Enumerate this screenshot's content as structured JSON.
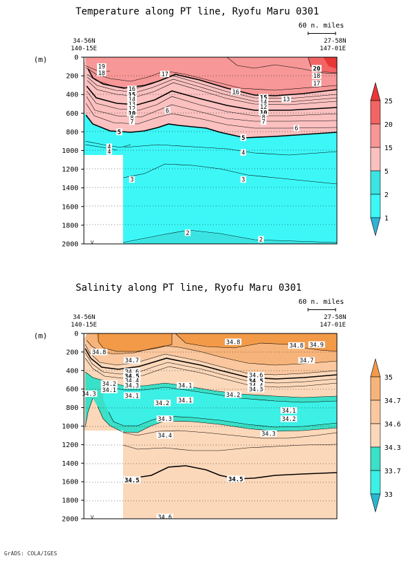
{
  "footer": "GrADS: COLA/IGES",
  "chart_data": [
    {
      "type": "contour",
      "title": "Temperature along PT line, Ryofu Maru 0301",
      "ylabel": "(m)",
      "ylim": [
        2000,
        0
      ],
      "y_ticks": [
        "0",
        "200",
        "400",
        "600",
        "800",
        "1000",
        "1200",
        "1400",
        "1600",
        "1800",
        "2000"
      ],
      "left_station": {
        "lat": "34-56N",
        "lon": "140-15E"
      },
      "right_station": {
        "lat": "27-58N",
        "lon": "147-01E"
      },
      "scale_label": "60 n. miles",
      "grid": true,
      "colorbar": {
        "labels": [
          "25",
          "20",
          "15",
          "5",
          "2",
          "1"
        ],
        "colors": [
          "#e83737",
          "#f36464",
          "#f79797",
          "#fbc0c0",
          "#3ce3e3",
          "#3df7f7",
          "#32b3d6"
        ]
      },
      "contour_labels": [
        {
          "text": "19",
          "x": 0.07,
          "y": 100,
          "bold": false
        },
        {
          "text": "18",
          "x": 0.07,
          "y": 170,
          "bold": false
        },
        {
          "text": "17",
          "x": 0.32,
          "y": 180,
          "bold": false
        },
        {
          "text": "16",
          "x": 0.19,
          "y": 340,
          "bold": false
        },
        {
          "text": "16",
          "x": 0.6,
          "y": 370,
          "bold": false
        },
        {
          "text": "15",
          "x": 0.19,
          "y": 400,
          "bold": true
        },
        {
          "text": "15",
          "x": 0.71,
          "y": 430,
          "bold": true
        },
        {
          "text": "14",
          "x": 0.19,
          "y": 450,
          "bold": false
        },
        {
          "text": "14",
          "x": 0.71,
          "y": 480,
          "bold": false
        },
        {
          "text": "13",
          "x": 0.19,
          "y": 500,
          "bold": false
        },
        {
          "text": "13",
          "x": 0.8,
          "y": 450,
          "bold": false
        },
        {
          "text": "12",
          "x": 0.19,
          "y": 550,
          "bold": false
        },
        {
          "text": "12",
          "x": 0.71,
          "y": 530,
          "bold": false
        },
        {
          "text": "10",
          "x": 0.19,
          "y": 600,
          "bold": true
        },
        {
          "text": "10",
          "x": 0.71,
          "y": 590,
          "bold": true
        },
        {
          "text": "8",
          "x": 0.19,
          "y": 650,
          "bold": false
        },
        {
          "text": "8",
          "x": 0.71,
          "y": 640,
          "bold": false
        },
        {
          "text": "7",
          "x": 0.19,
          "y": 690,
          "bold": false
        },
        {
          "text": "7",
          "x": 0.71,
          "y": 690,
          "bold": false
        },
        {
          "text": "6",
          "x": 0.33,
          "y": 570,
          "bold": false
        },
        {
          "text": "6",
          "x": 0.84,
          "y": 760,
          "bold": false
        },
        {
          "text": "5",
          "x": 0.14,
          "y": 800,
          "bold": true
        },
        {
          "text": "5",
          "x": 0.63,
          "y": 860,
          "bold": true
        },
        {
          "text": "4",
          "x": 0.1,
          "y": 960,
          "bold": false
        },
        {
          "text": "4",
          "x": 0.1,
          "y": 1010,
          "bold": false
        },
        {
          "text": "4",
          "x": 0.63,
          "y": 1020,
          "bold": false
        },
        {
          "text": "3",
          "x": 0.19,
          "y": 1310,
          "bold": false
        },
        {
          "text": "3",
          "x": 0.63,
          "y": 1310,
          "bold": false
        },
        {
          "text": "2",
          "x": 0.41,
          "y": 1880,
          "bold": false
        },
        {
          "text": "2",
          "x": 0.7,
          "y": 1950,
          "bold": false
        },
        {
          "text": "20",
          "x": 0.92,
          "y": 120,
          "bold": true
        },
        {
          "text": "18",
          "x": 0.92,
          "y": 200,
          "bold": false
        },
        {
          "text": "17",
          "x": 0.92,
          "y": 280,
          "bold": false
        }
      ]
    },
    {
      "type": "contour",
      "title": "Salinity along PT line, Ryofu Maru 0301",
      "ylabel": "(m)",
      "ylim": [
        2000,
        0
      ],
      "y_ticks": [
        "0",
        "200",
        "400",
        "600",
        "800",
        "1000",
        "1200",
        "1400",
        "1600",
        "1800",
        "2000"
      ],
      "left_station": {
        "lat": "34-56N",
        "lon": "140-15E"
      },
      "right_station": {
        "lat": "27-58N",
        "lon": "147-01E"
      },
      "scale_label": "60 n. miles",
      "grid": true,
      "colorbar": {
        "labels": [
          "35",
          "34.7",
          "34.6",
          "34.3",
          "33.7",
          "33"
        ],
        "colors": [
          "#f39a48",
          "#f7b47a",
          "#fac79e",
          "#fcd8ba",
          "#3ae0c7",
          "#3cf0e6",
          "#2bb6cf"
        ]
      },
      "contour_labels": [
        {
          "text": "34.8",
          "x": 0.06,
          "y": 200,
          "bold": false
        },
        {
          "text": "34.8",
          "x": 0.59,
          "y": 90,
          "bold": false
        },
        {
          "text": "34.8",
          "x": 0.84,
          "y": 130,
          "bold": false
        },
        {
          "text": "34.9",
          "x": 0.92,
          "y": 120,
          "bold": false
        },
        {
          "text": "34.7",
          "x": 0.19,
          "y": 290,
          "bold": false
        },
        {
          "text": "34.7",
          "x": 0.88,
          "y": 290,
          "bold": false
        },
        {
          "text": "34.6",
          "x": 0.19,
          "y": 410,
          "bold": false
        },
        {
          "text": "34.6",
          "x": 0.68,
          "y": 450,
          "bold": false
        },
        {
          "text": "34.5",
          "x": 0.19,
          "y": 460,
          "bold": true
        },
        {
          "text": "34.5",
          "x": 0.68,
          "y": 510,
          "bold": true
        },
        {
          "text": "34.4",
          "x": 0.19,
          "y": 510,
          "bold": false
        },
        {
          "text": "34.4",
          "x": 0.68,
          "y": 560,
          "bold": false
        },
        {
          "text": "34.3",
          "x": 0.19,
          "y": 560,
          "bold": false
        },
        {
          "text": "34.3",
          "x": 0.68,
          "y": 600,
          "bold": false
        },
        {
          "text": "34.3",
          "x": 0.02,
          "y": 650,
          "bold": false
        },
        {
          "text": "34.2",
          "x": 0.1,
          "y": 540,
          "bold": false
        },
        {
          "text": "34.1",
          "x": 0.1,
          "y": 610,
          "bold": false
        },
        {
          "text": "34.1",
          "x": 0.19,
          "y": 670,
          "bold": false
        },
        {
          "text": "34.1",
          "x": 0.4,
          "y": 560,
          "bold": false
        },
        {
          "text": "34.1",
          "x": 0.4,
          "y": 720,
          "bold": false
        },
        {
          "text": "34.2",
          "x": 0.31,
          "y": 750,
          "bold": false
        },
        {
          "text": "34.2",
          "x": 0.59,
          "y": 660,
          "bold": false
        },
        {
          "text": "34.1",
          "x": 0.81,
          "y": 830,
          "bold": false
        },
        {
          "text": "34.2",
          "x": 0.81,
          "y": 920,
          "bold": false
        },
        {
          "text": "34.3",
          "x": 0.32,
          "y": 920,
          "bold": false
        },
        {
          "text": "34.3",
          "x": 0.73,
          "y": 1080,
          "bold": false
        },
        {
          "text": "34.4",
          "x": 0.32,
          "y": 1100,
          "bold": false
        },
        {
          "text": "34.5",
          "x": 0.19,
          "y": 1580,
          "bold": true
        },
        {
          "text": "34.5",
          "x": 0.6,
          "y": 1570,
          "bold": true
        },
        {
          "text": "34.6",
          "x": 0.32,
          "y": 1980,
          "bold": false
        }
      ]
    }
  ]
}
